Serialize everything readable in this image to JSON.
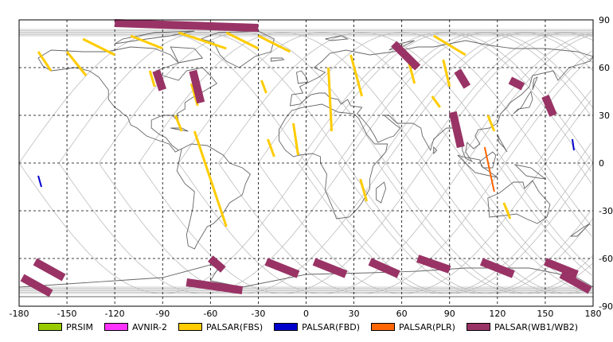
{
  "map": {
    "lon_ticks": [
      "-180",
      "-150",
      "-120",
      "-90",
      "-60",
      "-30",
      "0",
      "30",
      "60",
      "90",
      "120",
      "150",
      "180"
    ],
    "lat_ticks": [
      "90",
      "60",
      "30",
      "0",
      "-30",
      "-60",
      "-90"
    ],
    "lon_range": [
      -180,
      180
    ],
    "lat_range": [
      -90,
      90
    ],
    "grid": true,
    "projection": "equirectangular"
  },
  "legend": [
    {
      "label": "PRSIM",
      "color": "#99cc00"
    },
    {
      "label": "AVNIR-2",
      "color": "#ff33ff"
    },
    {
      "label": "PALSAR(FBS)",
      "color": "#ffcc00"
    },
    {
      "label": "PALSAR(FBD)",
      "color": "#0000cc"
    },
    {
      "label": "PALSAR(PLR)",
      "color": "#ff6600"
    },
    {
      "label": "PALSAR(WB1/WB2)",
      "color": "#993366"
    }
  ],
  "colors": {
    "coast": "#666666",
    "orbit": "#bbbbbb",
    "grid": "#000000",
    "fbs": "#ffcc00",
    "wb": "#993366",
    "fbd": "#0000cc",
    "plr": "#ff6600"
  },
  "observations": {
    "fbs": [
      [
        [
          -168,
          70
        ],
        [
          -160,
          58
        ]
      ],
      [
        [
          -150,
          70
        ],
        [
          -138,
          55
        ]
      ],
      [
        [
          -98,
          58
        ],
        [
          -95,
          48
        ]
      ],
      [
        [
          -72,
          50
        ],
        [
          -68,
          36
        ]
      ],
      [
        [
          -82,
          30
        ],
        [
          -78,
          20
        ]
      ],
      [
        [
          -70,
          20
        ],
        [
          -50,
          -40
        ]
      ],
      [
        [
          -28,
          52
        ],
        [
          -25,
          44
        ]
      ],
      [
        [
          14,
          60
        ],
        [
          16,
          20
        ]
      ],
      [
        [
          28,
          68
        ],
        [
          35,
          42
        ]
      ],
      [
        [
          34,
          -10
        ],
        [
          38,
          -24
        ]
      ],
      [
        [
          -24,
          15
        ],
        [
          -20,
          4
        ]
      ],
      [
        [
          -8,
          25
        ],
        [
          -5,
          5
        ]
      ],
      [
        [
          64,
          65
        ],
        [
          68,
          50
        ]
      ],
      [
        [
          79,
          42
        ],
        [
          84,
          35
        ]
      ],
      [
        [
          86,
          65
        ],
        [
          90,
          48
        ]
      ],
      [
        [
          114,
          30
        ],
        [
          118,
          20
        ]
      ],
      [
        [
          124,
          -25
        ],
        [
          128,
          -35
        ]
      ],
      [
        [
          -30,
          80
        ],
        [
          -10,
          70
        ]
      ],
      [
        [
          -50,
          82
        ],
        [
          -30,
          72
        ]
      ],
      [
        [
          -80,
          82
        ],
        [
          -50,
          72
        ]
      ],
      [
        [
          -110,
          80
        ],
        [
          -90,
          72
        ]
      ],
      [
        [
          80,
          80
        ],
        [
          100,
          68
        ]
      ],
      [
        [
          -140,
          78
        ],
        [
          -120,
          68
        ]
      ]
    ],
    "wb": [
      [
        [
          -170,
          -62
        ],
        [
          -152,
          -72
        ]
      ],
      [
        [
          -178,
          -72
        ],
        [
          -160,
          -82
        ]
      ],
      [
        [
          -60,
          -60
        ],
        [
          -52,
          -67
        ]
      ],
      [
        [
          -75,
          -75
        ],
        [
          -40,
          -80
        ]
      ],
      [
        [
          -25,
          -62
        ],
        [
          -5,
          -70
        ]
      ],
      [
        [
          5,
          -62
        ],
        [
          25,
          -70
        ]
      ],
      [
        [
          40,
          -62
        ],
        [
          58,
          -70
        ]
      ],
      [
        [
          70,
          -60
        ],
        [
          90,
          -67
        ]
      ],
      [
        [
          110,
          -62
        ],
        [
          130,
          -70
        ]
      ],
      [
        [
          150,
          -62
        ],
        [
          170,
          -70
        ]
      ],
      [
        [
          160,
          -70
        ],
        [
          178,
          -80
        ]
      ],
      [
        [
          -94,
          58
        ],
        [
          -90,
          46
        ]
      ],
      [
        [
          -71,
          58
        ],
        [
          -66,
          38
        ]
      ],
      [
        [
          55,
          75
        ],
        [
          70,
          60
        ]
      ],
      [
        [
          95,
          58
        ],
        [
          101,
          48
        ]
      ],
      [
        [
          92,
          32
        ],
        [
          97,
          10
        ]
      ],
      [
        [
          128,
          52
        ],
        [
          136,
          48
        ]
      ],
      [
        [
          150,
          42
        ],
        [
          155,
          30
        ]
      ],
      [
        [
          -120,
          88
        ],
        [
          -30,
          85
        ]
      ]
    ],
    "fbd": [
      [
        [
          -168,
          -8
        ],
        [
          -166,
          -15
        ]
      ],
      [
        [
          167,
          15
        ],
        [
          168,
          8
        ]
      ]
    ],
    "plr": [
      [
        [
          112,
          10
        ],
        [
          118,
          -18
        ]
      ]
    ]
  }
}
